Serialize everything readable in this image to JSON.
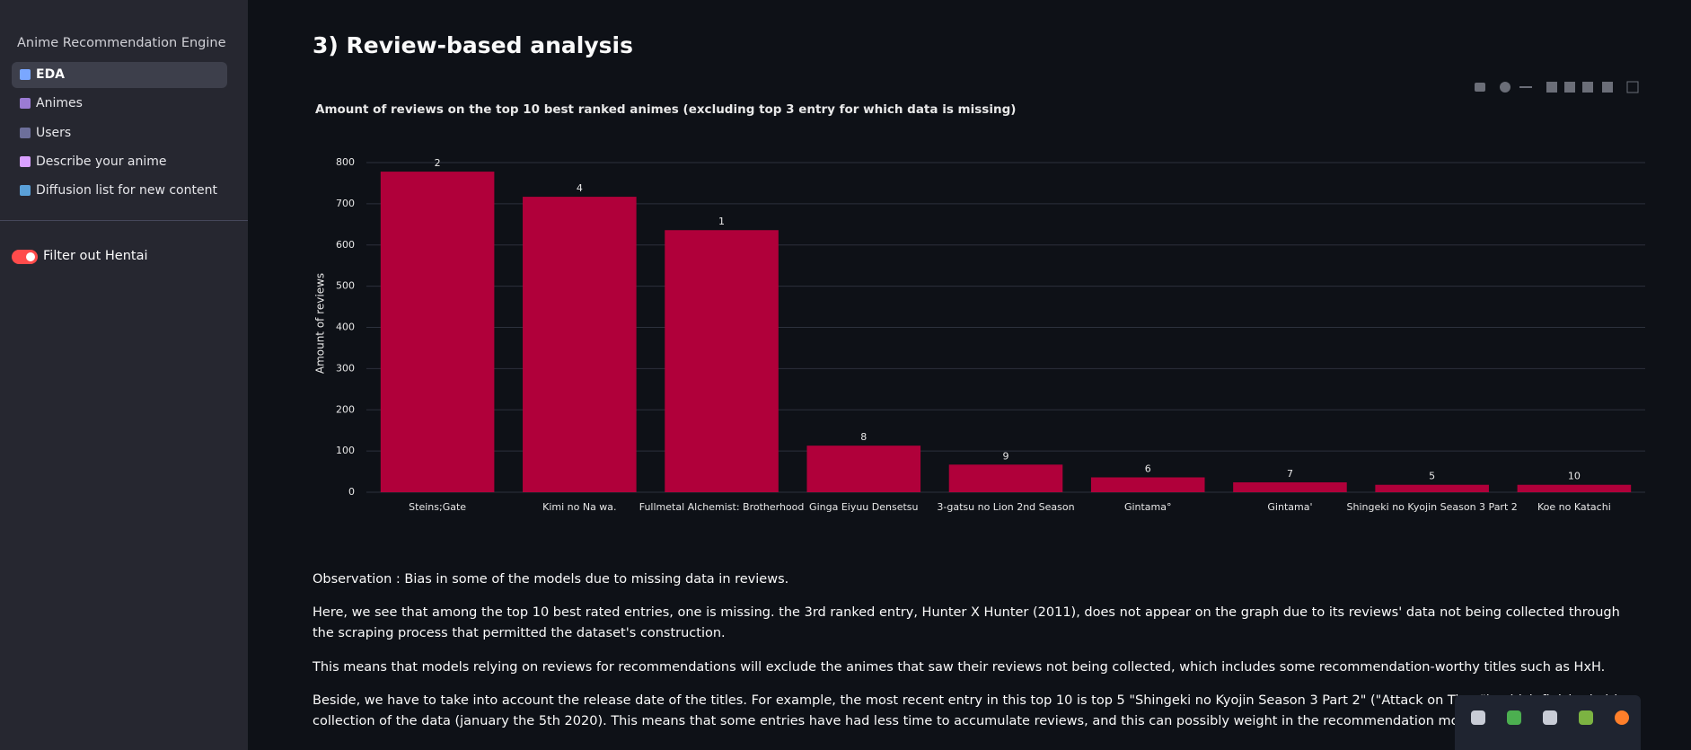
{
  "sidebar": {
    "title": "Anime Recommendation Engine",
    "nav": [
      "EDA",
      "Animes",
      "Users",
      "Describe your anime",
      "Diffusion list for new content"
    ],
    "toggle": "Filter out Hentai"
  },
  "heading": "3) Review-based analysis",
  "chart_data": {
    "type": "bar",
    "title": "Amount of reviews on the top 10 best ranked animes (excluding top 3 entry for which data is missing)",
    "ylabel": "Amount of reviews",
    "categories": [
      "Steins;Gate",
      "Kimi no Na wa.",
      "Fullmetal Alchemist: Brotherhood",
      "Ginga Eiyuu Densetsu",
      "3-gatsu no Lion 2nd Season",
      "Gintama°",
      "Gintama'",
      "Shingeki no Kyojin Season 3 Part 2",
      "Koe no Katachi"
    ],
    "values": [
      778,
      717,
      636,
      113,
      67,
      36,
      24,
      18,
      18
    ],
    "ranks": [
      2,
      4,
      1,
      8,
      9,
      6,
      7,
      5,
      10
    ],
    "color": "#b0003a",
    "ylim": [
      0,
      800
    ],
    "yticks": [
      0,
      100,
      200,
      300,
      400,
      500,
      600,
      700,
      800
    ],
    "grid": true
  },
  "paragraphs": [
    "Observation : Bias in some of the models due to missing data in reviews.",
    "Here, we see that among the top 10 best rated entries, one is missing. the 3rd ranked entry, Hunter X Hunter (2011), does not appear on the graph due to its reviews' data not being collected through the scraping process that permitted the dataset's construction.",
    "This means that models relying on reviews for recommendations will exclude the animes that saw their reviews not being collected, which includes some recommendation-worthy titles such as HxH."
  ],
  "last_paragraph_lines": [
    "Beside, we have to take into account the release date of the titles. For example, the most recent entry in this top 10 is top 5 \"Shingeki no Kyojin Season 3 Part 2\" (\"Attack on Titan\"), which finished airing july 2019, les",
    "collection of the data (january the 5th 2020). This means that some entries have had less time to accumulate reviews, and this can possibly weight in the recommendation models based on them."
  ]
}
